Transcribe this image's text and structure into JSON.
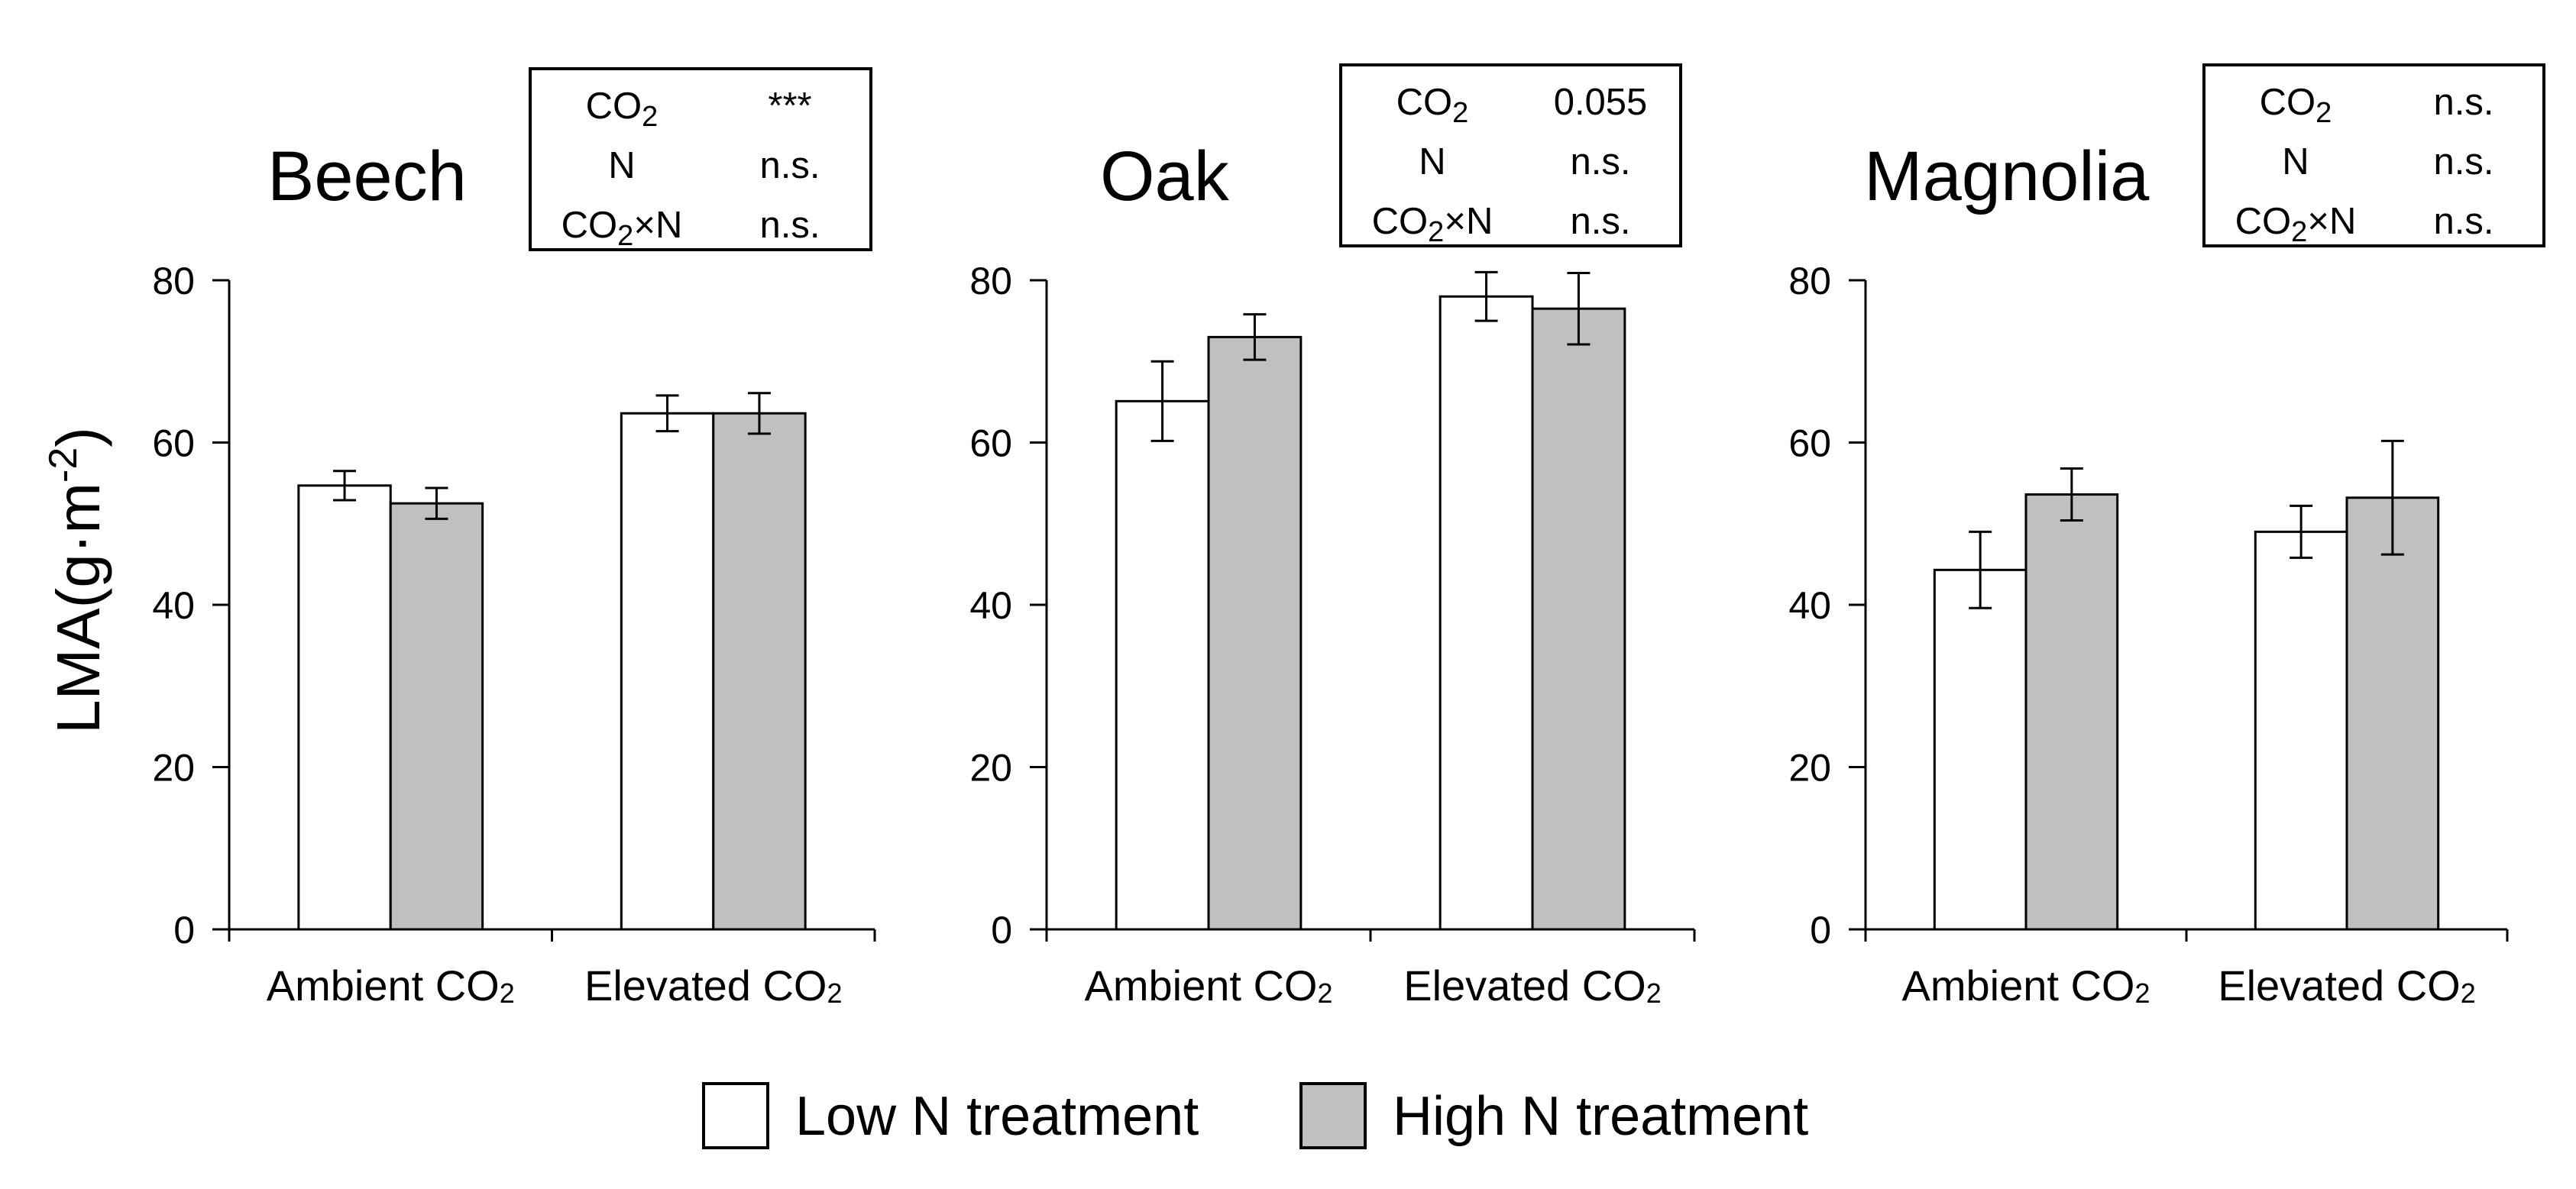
{
  "figure": {
    "ylabel_main": "LMA(g·m",
    "ylabel_sup": "-2",
    "ylabel_close": ")",
    "legend": [
      {
        "label": "Low N treatment",
        "color": "#ffffff"
      },
      {
        "label": "High N treatment",
        "color": "#c0c0c0"
      }
    ]
  },
  "chart_data": [
    {
      "type": "bar",
      "title": "Beech",
      "categories": [
        "Ambient CO2",
        "Elevated CO2"
      ],
      "series": [
        {
          "name": "Low N treatment",
          "color": "#ffffff",
          "values": [
            54.7,
            63.6
          ],
          "errors": [
            1.8,
            2.2
          ]
        },
        {
          "name": "High N treatment",
          "color": "#c0c0c0",
          "values": [
            52.5,
            63.6
          ],
          "errors": [
            1.9,
            2.5
          ]
        }
      ],
      "ylim": [
        0,
        80
      ],
      "yticks": [
        0,
        20,
        40,
        60,
        80
      ],
      "stats": [
        {
          "term": "CO2",
          "value": "***"
        },
        {
          "term": "N",
          "value": "n.s."
        },
        {
          "term": "CO2×N",
          "value": "n.s."
        }
      ]
    },
    {
      "type": "bar",
      "title": "Oak",
      "categories": [
        "Ambient CO2",
        "Elevated CO2"
      ],
      "series": [
        {
          "name": "Low N treatment",
          "color": "#ffffff",
          "values": [
            65.1,
            78.0
          ],
          "errors": [
            4.9,
            3.0
          ]
        },
        {
          "name": "High N treatment",
          "color": "#c0c0c0",
          "values": [
            73.0,
            76.5
          ],
          "errors": [
            2.8,
            4.4
          ]
        }
      ],
      "ylim": [
        0,
        80
      ],
      "yticks": [
        0,
        20,
        40,
        60,
        80
      ],
      "stats": [
        {
          "term": "CO2",
          "value": "0.055"
        },
        {
          "term": "N",
          "value": "n.s."
        },
        {
          "term": "CO2×N",
          "value": "n.s."
        }
      ]
    },
    {
      "type": "bar",
      "title": "Magnolia",
      "categories": [
        "Ambient CO2",
        "Elevated CO2"
      ],
      "series": [
        {
          "name": "Low N treatment",
          "color": "#ffffff",
          "values": [
            44.3,
            49.0
          ],
          "errors": [
            4.7,
            3.2
          ]
        },
        {
          "name": "High N treatment",
          "color": "#c0c0c0",
          "values": [
            53.6,
            53.2
          ],
          "errors": [
            3.2,
            7.0
          ]
        }
      ],
      "ylim": [
        0,
        80
      ],
      "yticks": [
        0,
        20,
        40,
        60,
        80
      ],
      "stats": [
        {
          "term": "CO2",
          "value": "n.s."
        },
        {
          "term": "N",
          "value": "n.s."
        },
        {
          "term": "CO2×N",
          "value": "n.s."
        }
      ]
    }
  ]
}
